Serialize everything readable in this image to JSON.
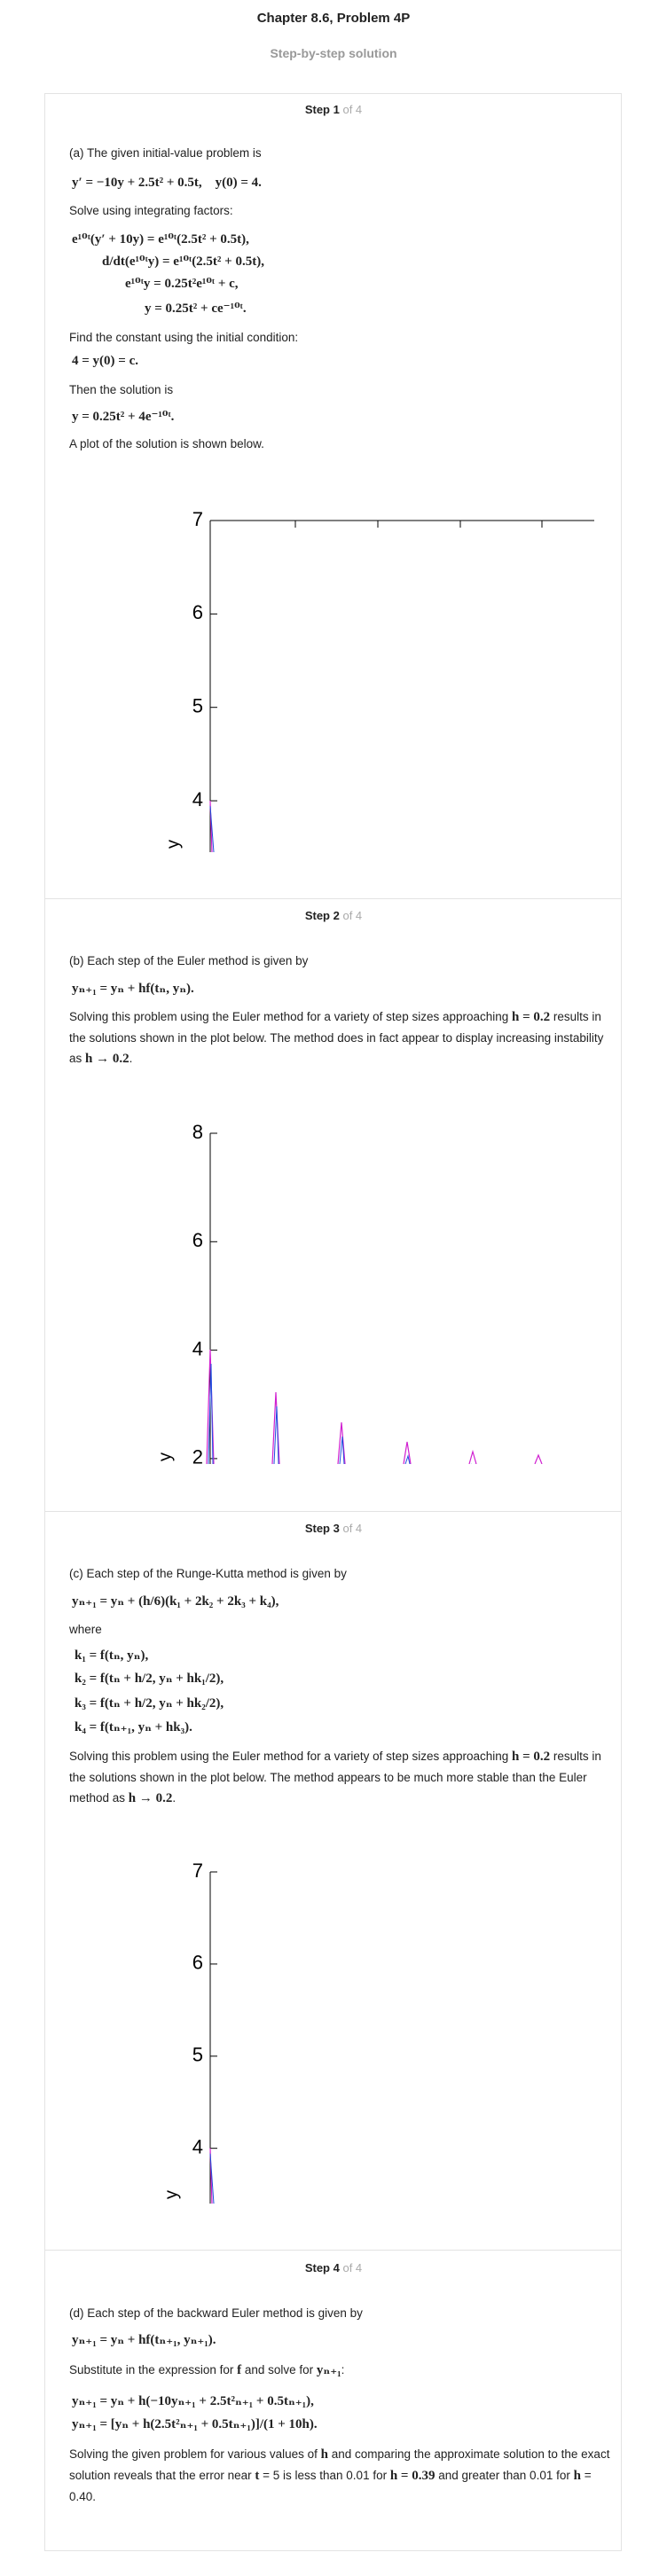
{
  "header": {
    "title": "Chapter 8.6, Problem 4P",
    "subtitle": "Step-by-step solution"
  },
  "steps": [
    {
      "label": "Step 1",
      "of": "of 4",
      "blocks": [
        {
          "text": "(a) The given initial-value problem is"
        },
        {
          "math": "y′ = −10y + 2.5t² + 0.5t,    y(0) = 4."
        },
        {
          "text": "Solve using integrating factors:"
        },
        {
          "math": "e¹⁰ᵗ(y′ + 10y) = e¹⁰ᵗ(2.5t² + 0.5t),"
        },
        {
          "math": "d/dt(e¹⁰ᵗy) = e¹⁰ᵗ(2.5t² + 0.5t),"
        },
        {
          "math": "e¹⁰ᵗy = 0.25t²e¹⁰ᵗ + c,"
        },
        {
          "math": "y = 0.25t² + ce⁻¹⁰ᵗ."
        },
        {
          "text": "Find the constant using the initial condition:"
        },
        {
          "math": "4 = y(0) = c."
        },
        {
          "text": "Then the solution is"
        },
        {
          "math": "y = 0.25t² + 4e⁻¹⁰ᵗ."
        },
        {
          "text": "A plot of the solution is shown below."
        },
        {
          "plot": true,
          "ylabel": "y",
          "ylim": [
            3.45,
            7
          ],
          "yticks": [
            7,
            6,
            5,
            4
          ]
        }
      ]
    },
    {
      "label": "Step 2",
      "of": "of 4",
      "blocks": [
        {
          "text": "(b) Each step of the Euler method is given by"
        },
        {
          "math": "yₙ₊₁ = yₙ + hf(tₙ, yₙ)."
        },
        {
          "parts": [
            "Solving this problem using the Euler method for a variety of step sizes approaching ",
            "h = 0.2",
            " results in the solutions shown in the plot below. The method does in fact appear to display increasing instability as ",
            "h → 0.2",
            "."
          ]
        },
        {
          "plot": true,
          "ylabel": "y",
          "ylim": [
            1.9,
            8
          ],
          "yticks": [
            8,
            6,
            4,
            2
          ]
        }
      ]
    },
    {
      "label": "Step 3",
      "of": "of 4",
      "blocks": [
        {
          "text": "(c) Each step of the Runge-Kutta method is given by"
        },
        {
          "math": "yₙ₊₁ = yₙ + (h/6)(k₁ + 2k₂ + 2k₃ + k₄),"
        },
        {
          "text": "where"
        },
        {
          "math": "k₁ = f(tₙ, yₙ),"
        },
        {
          "math": "k₂ = f(tₙ + h/2, yₙ + hk₁/2),"
        },
        {
          "math": "k₃ = f(tₙ + h/2, yₙ + hk₂/2),"
        },
        {
          "math": "k₄ = f(tₙ₊₁, yₙ + hk₃)."
        },
        {
          "parts": [
            "Solving this problem using the Euler method for a variety of step sizes approaching ",
            "h = 0.2",
            " results in the solutions shown in the plot below. The method appears to be much more stable than the Euler method as ",
            "h → 0.2",
            "."
          ]
        },
        {
          "plot": true,
          "ylabel": "y",
          "ylim": [
            3.4,
            7
          ],
          "yticks": [
            7,
            6,
            5,
            4
          ]
        }
      ]
    },
    {
      "label": "Step 4",
      "of": "of 4",
      "blocks": [
        {
          "text": "(d) Each step of the backward Euler method is given by"
        },
        {
          "math": "yₙ₊₁ = yₙ + hf(tₙ₊₁, yₙ₊₁)."
        },
        {
          "parts": [
            "Substitute in the expression for ",
            "f",
            " and solve for ",
            "yₙ₊₁",
            ":"
          ]
        },
        {
          "math": "yₙ₊₁ = yₙ + h(−10yₙ₊₁ + 2.5t²ₙ₊₁ + 0.5tₙ₊₁),"
        },
        {
          "math": "yₙ₊₁ = [yₙ + h(2.5t²ₙ₊₁ + 0.5tₙ₊₁)]/(1 + 10h)."
        },
        {
          "parts": [
            "Solving the given problem for various values of ",
            "h",
            " and comparing the approximate solution to the exact solution reveals that the error near ",
            "t",
            " = 5 is less than 0.01 for ",
            "h = 0.39",
            " and greater than 0.01 for ",
            "h",
            " = 0.40."
          ]
        }
      ]
    }
  ]
}
